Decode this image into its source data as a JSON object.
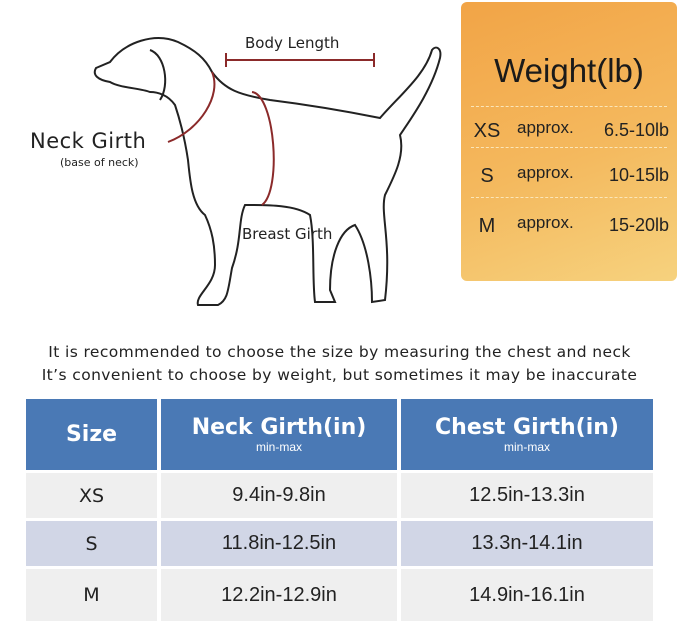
{
  "diagram": {
    "body_length": "Body Length",
    "neck_girth": "Neck Girth",
    "neck_girth_note": "(base of neck)",
    "breast_girth": "Breast Girth",
    "accent_color": "#8b2a2a"
  },
  "weight": {
    "title": "Weight(lb)",
    "rows": [
      {
        "size": "XS",
        "approx": "approx.",
        "value": "6.5-10lb"
      },
      {
        "size": "S",
        "approx": "approx.",
        "value": "10-15lb"
      },
      {
        "size": "M",
        "approx": "approx.",
        "value": "15-20lb"
      }
    ]
  },
  "note": {
    "line1": "It is recommended to choose the size by measuring the chest and neck",
    "line2": "It’s convenient to choose by weight, but sometimes it may be inaccurate"
  },
  "table": {
    "headers": [
      {
        "label": "Size",
        "sub": ""
      },
      {
        "label": "Neck Girth(in)",
        "sub": "min-max"
      },
      {
        "label": "Chest Girth(in)",
        "sub": "min-max"
      }
    ],
    "rows": [
      [
        "XS",
        "9.4in-9.8in",
        "12.5in-13.3in"
      ],
      [
        "S",
        "11.8in-12.5in",
        "13.3n-14.1in"
      ],
      [
        "M",
        "12.2in-12.9in",
        "14.9in-16.1in"
      ]
    ],
    "header_color": "#4a79b5"
  }
}
